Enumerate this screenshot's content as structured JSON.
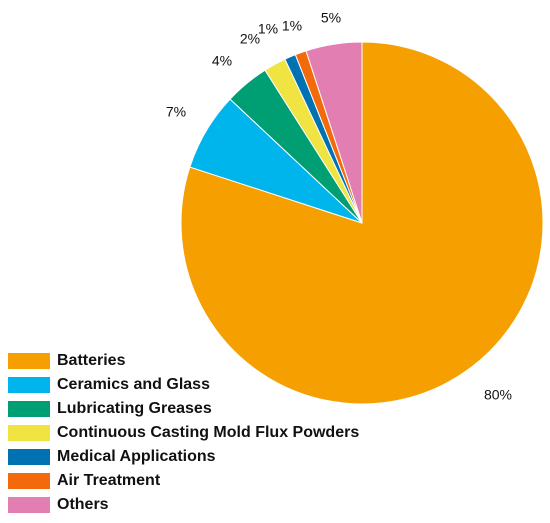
{
  "chart_data": {
    "type": "pie",
    "title": "",
    "categories": [
      "Batteries",
      "Ceramics and Glass",
      "Lubricating Greases",
      "Continuous Casting Mold Flux Powders",
      "Medical Applications",
      "Air Treatment",
      "Others"
    ],
    "values": [
      80,
      7,
      4,
      2,
      1,
      1,
      5
    ],
    "labels": [
      "80%",
      "7%",
      "4%",
      "2%",
      "1%",
      "1%",
      "5%"
    ],
    "colors": [
      "#f5a000",
      "#00b4ec",
      "#009e73",
      "#f0e442",
      "#0072b2",
      "#f26a0c",
      "#e37eb2"
    ],
    "start_angle": "12 o'clock",
    "direction": "clockwise",
    "legend_position": "bottom-left"
  }
}
